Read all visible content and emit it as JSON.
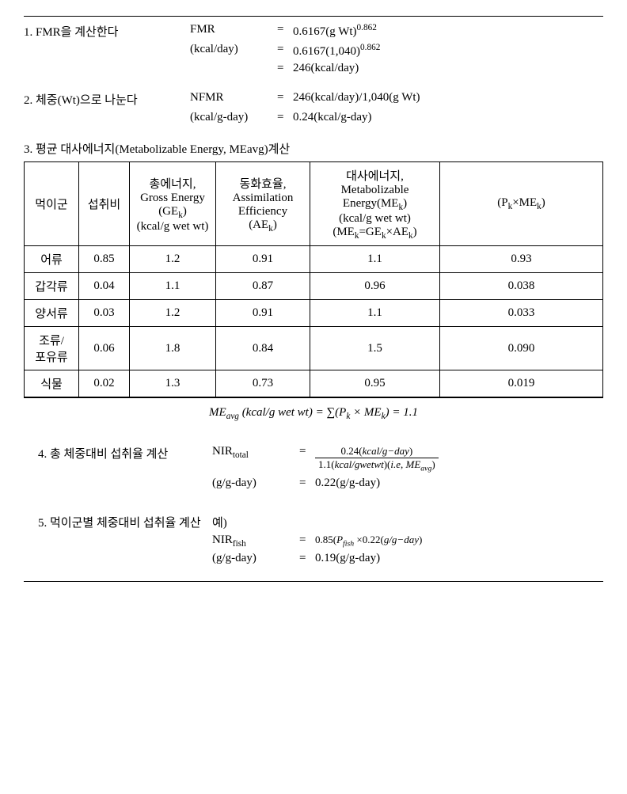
{
  "step1": {
    "label": "1. FMR을 계산한다",
    "unit_label": "FMR",
    "unit_sub": "(kcal/day)",
    "lines": [
      "0.6167(g Wt)<sup>0.862</sup>",
      "0.6167(1,040)<sup>0.862</sup>",
      "246(kcal/day)"
    ]
  },
  "step2": {
    "label": "2. 체중(Wt)으로 나눈다",
    "unit_label": "NFMR",
    "unit_sub": "(kcal/g-day)",
    "lines": [
      "246(kcal/day)/1,040(g Wt)",
      "0.24(kcal/g-day)"
    ]
  },
  "step3": {
    "heading": "3. 평균 대사에너지(Metabolizable Energy, MEavg)계산",
    "columns": [
      "먹이군",
      "섭취비",
      "총에너지,<br>Gross Energy<br>(GE<sub>k</sub>)<br>(kcal/g wet wt)",
      "동화효율,<br>Assimilation Efficiency<br>(AE<sub>k</sub>)",
      "대사에너지,<br>Metabolizable Energy(ME<sub>k</sub>)<br>(kcal/g wet wt)<br>(ME<sub>k</sub>=GE<sub>k</sub>×AE<sub>k</sub>)",
      "(P<sub>k</sub>×ME<sub>k</sub>)"
    ],
    "rows": [
      [
        "어류",
        "0.85",
        "1.2",
        "0.91",
        "1.1",
        "0.93"
      ],
      [
        "갑각류",
        "0.04",
        "1.1",
        "0.87",
        "0.96",
        "0.038"
      ],
      [
        "양서류",
        "0.03",
        "1.2",
        "0.91",
        "1.1",
        "0.033"
      ],
      [
        "조류/<br>포유류",
        "0.06",
        "1.8",
        "0.84",
        "1.5",
        "0.090"
      ],
      [
        "식물",
        "0.02",
        "1.3",
        "0.73",
        "0.95",
        "0.019"
      ]
    ],
    "formula": "ME<sub>avg</sub> (kcal/g wet wt) = ∑(P<sub>k</sub> × ME<sub>k</sub>) = 1.1"
  },
  "step4": {
    "label": "4. 총 체중대비 섭취율 계산",
    "unit_label": "NIR<sub>total</sub>",
    "unit_sub": "(g/g-day)",
    "frac_num": "0.24(<i>kcal/g−day</i>)",
    "frac_den": "1.1(<i>kcal/gwetwt</i>)(<i>i.e</i>, <i>ME<sub>avg</sub></i>)",
    "result": "0.22(g/g-day)"
  },
  "step5": {
    "label": "5. 먹이군별 체중대비 섭취율 계산",
    "example": "예)",
    "unit_label": "NIR<sub>fish</sub>",
    "unit_sub": "(g/g-day)",
    "lines": [
      "0.85(<i>P<sub>fish</sub></i> ×0.22(<i>g/g−day</i>)",
      "0.19(g/g-day)"
    ]
  }
}
